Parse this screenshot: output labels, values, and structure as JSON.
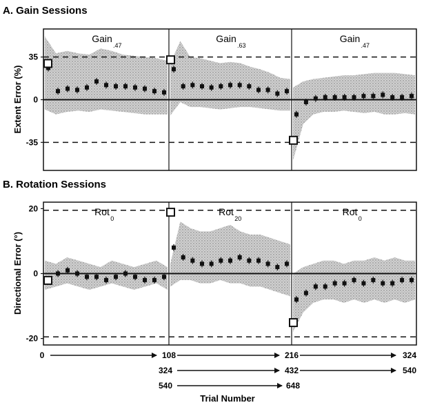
{
  "chart_data": [
    {
      "type": "scatter",
      "panel_title": "A. Gain Sessions",
      "ylabel": "Extent Error (%)",
      "ylim": [
        -58,
        58
      ],
      "yticks": [
        35,
        0,
        -35
      ],
      "dashed_lines": [
        35,
        -35
      ],
      "segments": [
        {
          "label": "Gain",
          "sub": ".47"
        },
        {
          "label": "Gain",
          "sub": ".63"
        },
        {
          "label": "Gain",
          "sub": ".47"
        }
      ],
      "first_trial_points": [
        30,
        33,
        -33
      ],
      "series": [
        {
          "name": "segment1",
          "values": [
            26,
            7,
            9,
            8,
            10,
            15,
            12,
            11,
            11,
            10,
            9,
            7,
            6
          ]
        },
        {
          "name": "segment2",
          "values": [
            25,
            11,
            12,
            11,
            10,
            11,
            12,
            12,
            11,
            8,
            8,
            5,
            7
          ]
        },
        {
          "name": "segment3",
          "values": [
            -12,
            -2,
            1,
            2,
            2,
            2,
            2,
            3,
            3,
            4,
            2,
            2,
            3
          ]
        }
      ],
      "band_upper": [
        52,
        38,
        40,
        38,
        37,
        42,
        40,
        37,
        36,
        35,
        34,
        32,
        30,
        48,
        35,
        34,
        32,
        30,
        31,
        30,
        27,
        25,
        22,
        18,
        17,
        10,
        15,
        17,
        18,
        19,
        20,
        20,
        21,
        22,
        22,
        22,
        21,
        20
      ],
      "band_lower": [
        -8,
        -12,
        -10,
        -9,
        -10,
        -8,
        -9,
        -10,
        -11,
        -12,
        -12,
        -12,
        -13,
        -2,
        -6,
        -6,
        -7,
        -8,
        -7,
        -6,
        -6,
        -7,
        -8,
        -9,
        -9,
        -50,
        -20,
        -12,
        -10,
        -10,
        -9,
        -10,
        -11,
        -10,
        -12,
        -12,
        -11,
        -12
      ]
    },
    {
      "type": "scatter",
      "panel_title": "B. Rotation Sessions",
      "ylabel": "Directional Error (°)",
      "ylim": [
        -22,
        22
      ],
      "yticks": [
        20,
        0,
        -20
      ],
      "dashed_lines": [
        19.5,
        -19.5
      ],
      "segments": [
        {
          "label": "Rot",
          "sub": "0"
        },
        {
          "label": "Rot",
          "sub": "20"
        },
        {
          "label": "Rot",
          "sub": "0"
        }
      ],
      "first_trial_points": [
        -2,
        19,
        -15
      ],
      "series": [
        {
          "name": "segment1",
          "values": [
            -2,
            0,
            1,
            0,
            -1,
            -1,
            -2,
            -1,
            0,
            -1,
            -2,
            -2,
            -1
          ]
        },
        {
          "name": "segment2",
          "values": [
            8,
            5,
            4,
            3,
            3,
            4,
            4,
            5,
            4,
            4,
            3,
            2,
            3
          ]
        },
        {
          "name": "segment3",
          "values": [
            -8,
            -6,
            -4,
            -4,
            -3,
            -3,
            -2,
            -3,
            -2,
            -3,
            -3,
            -2,
            -2
          ]
        }
      ],
      "band_upper": [
        4,
        3,
        5,
        4,
        3,
        2,
        4,
        3,
        2,
        3,
        4,
        2,
        3,
        16,
        14,
        13,
        13,
        14,
        15,
        13,
        12,
        12,
        11,
        10,
        9,
        0,
        2,
        3,
        4,
        4,
        3,
        4,
        4,
        5,
        4,
        5,
        4,
        4
      ],
      "band_lower": [
        -5,
        -4,
        -3,
        -4,
        -5,
        -4,
        -3,
        -4,
        -5,
        -4,
        -3,
        -5,
        -4,
        -2,
        -2,
        -3,
        -3,
        -2,
        -3,
        -3,
        -4,
        -4,
        -5,
        -6,
        -7,
        -18,
        -12,
        -9,
        -8,
        -8,
        -9,
        -8,
        -9,
        -8,
        -9,
        -8,
        -9,
        -8
      ]
    }
  ],
  "trial_axis": {
    "label": "Trial Number",
    "rows": [
      [
        "0",
        "108",
        "216",
        "324"
      ],
      [
        "324",
        "432",
        "540"
      ],
      [
        "540",
        "648"
      ]
    ]
  },
  "colors": {
    "band": "#b8b8b8",
    "ink": "#111111"
  }
}
